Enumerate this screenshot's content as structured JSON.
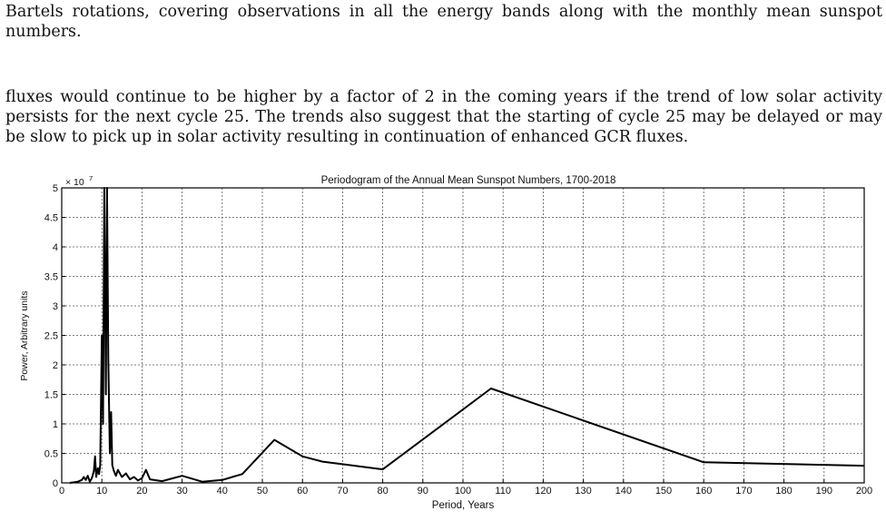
{
  "text": {
    "para1": "Bartels rotations, covering observations in all the energy bands along with the monthly mean sunspot numbers.",
    "para2": "fluxes would continue to be higher by a factor of 2 in the coming years if the trend of low solar activity persists for the next cycle 25. The trends also suggest that the starting of cycle 25 may be delayed or may be slow to pick up in solar activity resulting in continuation of enhanced GCR fluxes."
  },
  "chart_data": {
    "type": "line",
    "title": "Periodogram of the Annual Mean Sunspot Numbers, 1700-2018",
    "xlabel": "Period, Years",
    "ylabel": "Power, Arbitrary units",
    "y_multiplier_label": "× 10",
    "y_multiplier_exponent": "7",
    "xlim": [
      0,
      200
    ],
    "ylim": [
      0,
      5
    ],
    "x_ticks": [
      "0",
      "10",
      "20",
      "30",
      "40",
      "50",
      "60",
      "70",
      "80",
      "90",
      "100",
      "110",
      "120",
      "130",
      "140",
      "150",
      "160",
      "170",
      "180",
      "190",
      "200"
    ],
    "y_ticks": [
      "0",
      "0.5",
      "1",
      "1.5",
      "2",
      "2.5",
      "3",
      "3.5",
      "4",
      "4.5",
      "5"
    ],
    "grid": true,
    "series": [
      {
        "color": "#000000",
        "x": [
          2,
          3,
          4,
          5,
          5.5,
          6,
          6.5,
          7,
          7.5,
          8,
          8.3,
          8.6,
          9,
          9.3,
          9.6,
          10,
          10.3,
          10.6,
          11,
          11.3,
          11.6,
          12,
          12.3,
          12.6,
          13,
          13.5,
          14,
          15,
          16,
          17,
          18,
          19,
          20,
          21,
          22,
          25,
          30,
          35,
          40,
          45,
          53,
          60,
          65,
          80,
          107,
          160,
          200
        ],
        "y": [
          0,
          0.01,
          0.02,
          0.05,
          0.1,
          0.05,
          0.12,
          0.02,
          0.08,
          0.2,
          0.45,
          0.1,
          0.25,
          0.15,
          0.3,
          2.5,
          1.0,
          5.0,
          1.5,
          5.0,
          2.1,
          0.5,
          1.2,
          0.3,
          0.2,
          0.12,
          0.22,
          0.1,
          0.16,
          0.06,
          0.1,
          0.04,
          0.08,
          0.22,
          0.06,
          0.03,
          0.12,
          0.02,
          0.05,
          0.15,
          0.73,
          0.45,
          0.36,
          0.23,
          1.6,
          0.35,
          0.29
        ]
      }
    ]
  }
}
